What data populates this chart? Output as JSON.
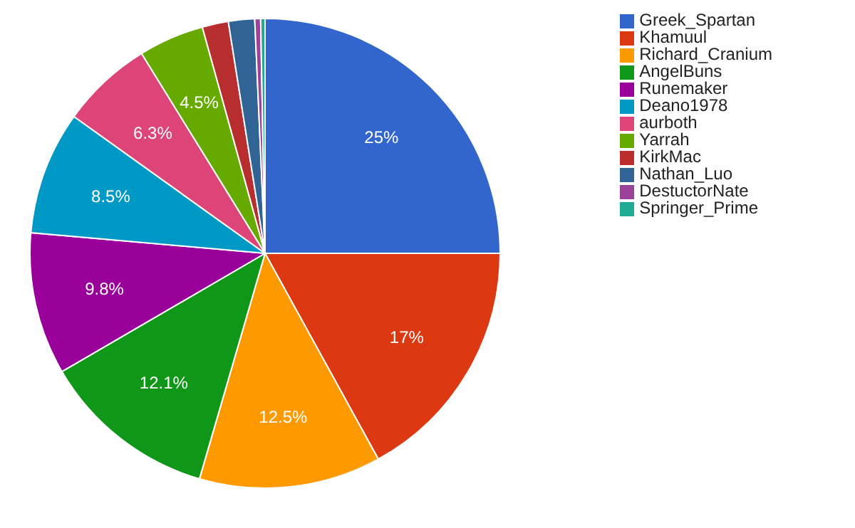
{
  "chart_data": {
    "type": "pie",
    "categories": [
      "Greek_Spartan",
      "Khamuul",
      "Richard_Cranium",
      "AngelBuns",
      "Runemaker",
      "Deano1978",
      "aurboth",
      "Yarrah",
      "KirkMac",
      "Nathan_Luo",
      "DestuctorNate",
      "Springer_Prime"
    ],
    "values": [
      25,
      17,
      12.5,
      12.1,
      9.8,
      8.5,
      6.3,
      4.5,
      1.8,
      1.8,
      0.4,
      0.3
    ],
    "value_labels": [
      "25%",
      "17%",
      "12.5%",
      "12.1%",
      "9.8%",
      "8.5%",
      "6.3%",
      "4.5%",
      null,
      null,
      null,
      null
    ],
    "colors": [
      "#3366cc",
      "#dc3912",
      "#ff9900",
      "#109618",
      "#990099",
      "#0099c6",
      "#dd4477",
      "#66aa00",
      "#b82e2e",
      "#316395",
      "#994499",
      "#22aa99"
    ],
    "legend": "right"
  }
}
